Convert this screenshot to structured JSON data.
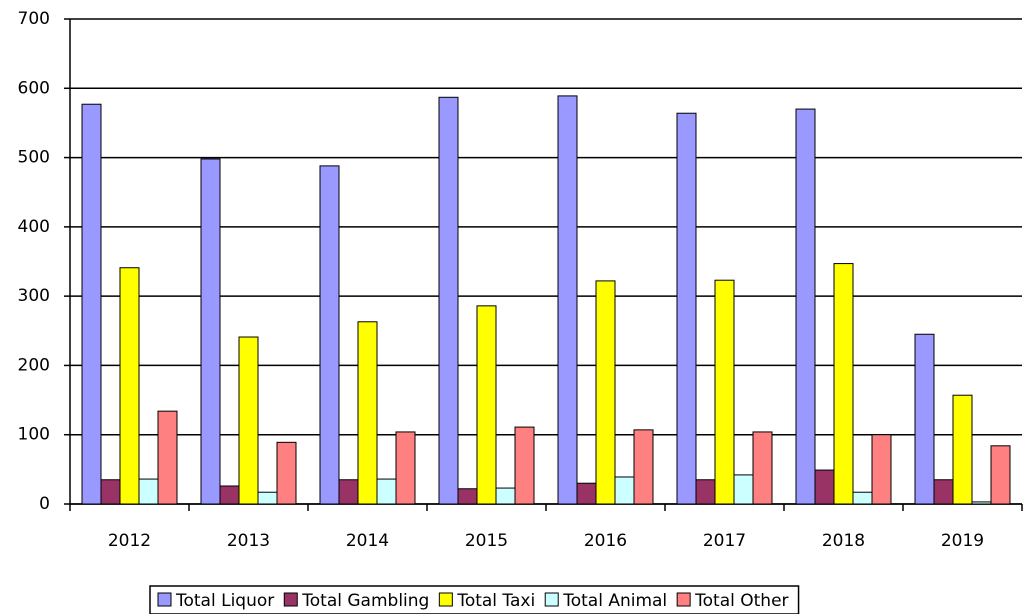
{
  "chart_data": {
    "type": "bar",
    "categories": [
      "2012",
      "2013",
      "2014",
      "2015",
      "2016",
      "2017",
      "2018",
      "2019"
    ],
    "series": [
      {
        "name": "Total Liquor",
        "color": "#9999ff",
        "values": [
          577,
          498,
          488,
          587,
          589,
          564,
          570,
          245
        ]
      },
      {
        "name": "Total Gambling",
        "color": "#993366",
        "values": [
          35,
          26,
          35,
          22,
          30,
          35,
          49,
          35
        ]
      },
      {
        "name": "Total Taxi",
        "color": "#ffff00",
        "values": [
          341,
          241,
          263,
          286,
          322,
          323,
          347,
          157
        ]
      },
      {
        "name": "Total Animal",
        "color": "#ccffff",
        "values": [
          36,
          17,
          36,
          23,
          39,
          42,
          17,
          3
        ]
      },
      {
        "name": "Total Other",
        "color": "#ff8080",
        "values": [
          134,
          89,
          104,
          111,
          107,
          104,
          100,
          84
        ]
      }
    ],
    "ylim": [
      0,
      700
    ],
    "yticks": [
      0,
      100,
      200,
      300,
      400,
      500,
      600,
      700
    ],
    "grid": true
  }
}
